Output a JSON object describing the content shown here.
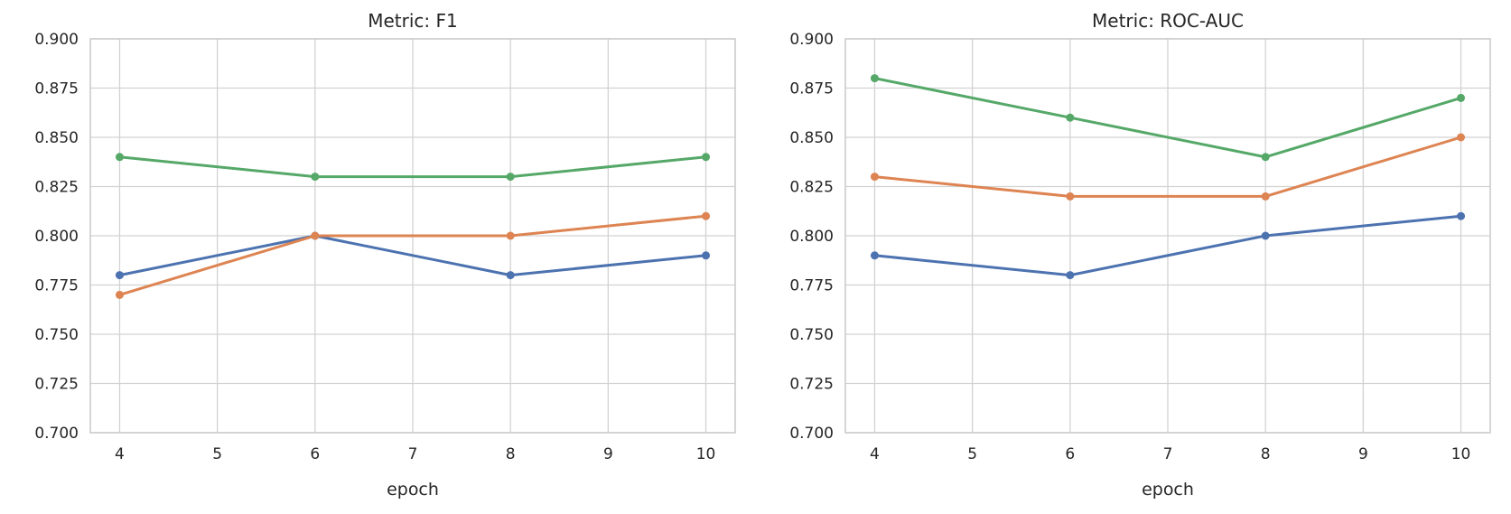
{
  "figure": {
    "background": "#ffffff",
    "text_color": "#262626",
    "grid_color": "#d2d2d2",
    "frame_color": "#c9c9c9",
    "palette": {
      "blue": "#4C72B0",
      "orange": "#DD8452",
      "green": "#55A868"
    }
  },
  "chart_data": [
    {
      "type": "line",
      "title": "Metric: F1",
      "xlabel": "epoch",
      "ylabel": "",
      "x": [
        4,
        6,
        8,
        10
      ],
      "xticks": [
        4,
        5,
        6,
        7,
        8,
        9,
        10
      ],
      "yticks": [
        0.7,
        0.725,
        0.75,
        0.775,
        0.8,
        0.825,
        0.85,
        0.875,
        0.9
      ],
      "ytick_decimals": 3,
      "xlim": [
        3.7,
        10.3
      ],
      "ylim": [
        0.7,
        0.9
      ],
      "grid": true,
      "legend": "none",
      "marker": "circle",
      "series": [
        {
          "name": "blue",
          "color": "#4C72B0",
          "values": [
            0.78,
            0.8,
            0.78,
            0.79
          ]
        },
        {
          "name": "orange",
          "color": "#DD8452",
          "values": [
            0.77,
            0.8,
            0.8,
            0.81
          ]
        },
        {
          "name": "green",
          "color": "#55A868",
          "values": [
            0.84,
            0.83,
            0.83,
            0.84
          ]
        }
      ]
    },
    {
      "type": "line",
      "title": "Metric: ROC-AUC",
      "xlabel": "epoch",
      "ylabel": "",
      "x": [
        4,
        6,
        8,
        10
      ],
      "xticks": [
        4,
        5,
        6,
        7,
        8,
        9,
        10
      ],
      "yticks": [
        0.7,
        0.725,
        0.75,
        0.775,
        0.8,
        0.825,
        0.85,
        0.875,
        0.9
      ],
      "ytick_decimals": 3,
      "xlim": [
        3.7,
        10.3
      ],
      "ylim": [
        0.7,
        0.9
      ],
      "grid": true,
      "legend": "none",
      "marker": "circle",
      "series": [
        {
          "name": "blue",
          "color": "#4C72B0",
          "values": [
            0.79,
            0.78,
            0.8,
            0.81
          ]
        },
        {
          "name": "orange",
          "color": "#DD8452",
          "values": [
            0.83,
            0.82,
            0.82,
            0.85
          ]
        },
        {
          "name": "green",
          "color": "#55A868",
          "values": [
            0.88,
            0.86,
            0.84,
            0.87
          ]
        }
      ]
    }
  ]
}
